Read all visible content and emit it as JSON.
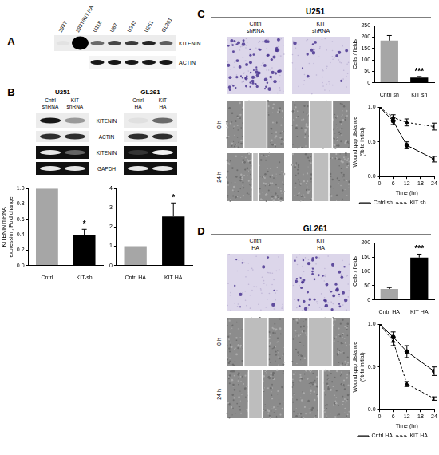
{
  "panel_A": {
    "label": "A",
    "lanes": [
      "293T",
      "293T/KIT HA",
      "U118",
      "U87",
      "U343",
      "U251",
      "GL261"
    ],
    "bands": [
      "KITENIN",
      "ACTIN"
    ]
  },
  "panel_B": {
    "label": "B",
    "blots": [
      {
        "title": "U251",
        "lanes": [
          "Cntrl shRNA",
          "KIT shRNA"
        ]
      },
      {
        "title": "GL261",
        "lanes": [
          "Cntrl HA",
          "KIT HA"
        ]
      }
    ],
    "bands": [
      "KITENIN",
      "ACTIN",
      "KITENIN",
      "GAPDH"
    ]
  },
  "panel_C": {
    "label": "C",
    "title": "U251",
    "columns": [
      "Cntrl shRNA",
      "KIT shRNA"
    ],
    "rows": [
      "0 h",
      "24 h"
    ]
  },
  "panel_D": {
    "label": "D",
    "title": "GL261",
    "columns": [
      "Cntrl HA",
      "KIT HA"
    ],
    "rows": [
      "0 h",
      "24 h"
    ]
  },
  "chart_data": [
    {
      "type": "bar",
      "categories": [
        "Cntrl",
        "KIT-sh"
      ],
      "values": [
        1.0,
        0.4
      ],
      "errors": [
        0,
        0.07
      ],
      "colors": [
        "#a6a6a6",
        "#000000"
      ],
      "ylabel": "KITENIN mRNA expression, Fold change",
      "ylim": [
        0,
        1.0
      ],
      "yticks": [
        {
          "value": 0,
          "label": "0.0"
        },
        {
          "value": 0.2,
          "label": "0.2"
        },
        {
          "value": 0.4,
          "label": "0.4"
        },
        {
          "value": 0.6,
          "label": "0.6"
        },
        {
          "value": 0.8,
          "label": "0.8"
        },
        {
          "value": 1.0,
          "label": "1.0"
        }
      ],
      "annotations": [
        {
          "text": "*",
          "category": "KIT-sh"
        }
      ],
      "grid": false
    },
    {
      "type": "bar",
      "categories": [
        "Cntrl HA",
        "KIT HA"
      ],
      "values": [
        1,
        2.55
      ],
      "errors": [
        0,
        0.7
      ],
      "colors": [
        "#a6a6a6",
        "#000000"
      ],
      "ylim": [
        0,
        4
      ],
      "yticks": [
        0,
        1,
        2,
        3,
        4
      ],
      "annotations": [
        {
          "text": "*",
          "category": "KIT HA"
        }
      ],
      "grid": false
    },
    {
      "type": "bar",
      "categories": [
        "Cntrl sh",
        "KIT sh"
      ],
      "values": [
        185,
        22
      ],
      "errors": [
        22,
        5
      ],
      "colors": [
        "#a6a6a6",
        "#000000"
      ],
      "ylabel": "Cells / fields",
      "ylim": [
        0,
        250
      ],
      "yticks": [
        0,
        50,
        100,
        150,
        200,
        250
      ],
      "annotations": [
        {
          "text": "***",
          "category": "KIT sh"
        }
      ],
      "grid": false
    },
    {
      "type": "line",
      "x": [
        0,
        6,
        12,
        24
      ],
      "series": [
        {
          "name": "Cntrl sh",
          "color": "#000000",
          "values": [
            1.0,
            0.8,
            0.45,
            0.25
          ],
          "errors": [
            0,
            0.05,
            0.05,
            0.04
          ],
          "marker": "circle",
          "line_style": "solid"
        },
        {
          "name": "KIT sh",
          "color": "#000000",
          "values": [
            1.0,
            0.85,
            0.78,
            0.72
          ],
          "errors": [
            0,
            0.04,
            0.05,
            0.05
          ],
          "marker": "triangle",
          "line_style": "dashed"
        }
      ],
      "xlabel": "Time (hr)",
      "ylabel": "Wound gap distance (% to initial)",
      "xlim": [
        0,
        24
      ],
      "xticks": [
        0,
        6,
        12,
        18,
        24
      ],
      "ylim": [
        0,
        1.0
      ],
      "yticks": [
        {
          "value": 0,
          "label": "0.0"
        },
        {
          "value": 0.5,
          "label": "0.5"
        },
        {
          "value": 1.0,
          "label": "1.0"
        }
      ],
      "legend": "bottom",
      "grid": false
    },
    {
      "type": "bar",
      "categories": [
        "Cntrl HA",
        "KIT HA"
      ],
      "values": [
        38,
        148
      ],
      "errors": [
        5,
        12
      ],
      "colors": [
        "#a6a6a6",
        "#000000"
      ],
      "ylabel": "Cells / fields",
      "ylim": [
        0,
        200
      ],
      "yticks": [
        0,
        50,
        100,
        150,
        200
      ],
      "annotations": [
        {
          "text": "***",
          "category": "KIT HA"
        }
      ],
      "grid": false
    },
    {
      "type": "line",
      "x": [
        0,
        6,
        12,
        24
      ],
      "series": [
        {
          "name": "Cntrl HA",
          "color": "#000000",
          "values": [
            1.0,
            0.85,
            0.68,
            0.45
          ],
          "errors": [
            0,
            0.06,
            0.07,
            0.05
          ],
          "marker": "circle",
          "line_style": "solid"
        },
        {
          "name": "KIT HA",
          "color": "#000000",
          "values": [
            1.0,
            0.8,
            0.3,
            0.13
          ],
          "errors": [
            0,
            0.05,
            0.03,
            0.02
          ],
          "marker": "triangle",
          "line_style": "dashed"
        }
      ],
      "xlabel": "Time (hr)",
      "ylabel": "Wound gap distance (% to initial)",
      "xlim": [
        0,
        24
      ],
      "xticks": [
        0,
        6,
        12,
        18,
        24
      ],
      "ylim": [
        0,
        1.0
      ],
      "yticks": [
        {
          "value": 0,
          "label": "0.0"
        },
        {
          "value": 0.5,
          "label": "0.5"
        },
        {
          "value": 1.0,
          "label": "1.0"
        }
      ],
      "legend": "bottom",
      "grid": false
    }
  ]
}
